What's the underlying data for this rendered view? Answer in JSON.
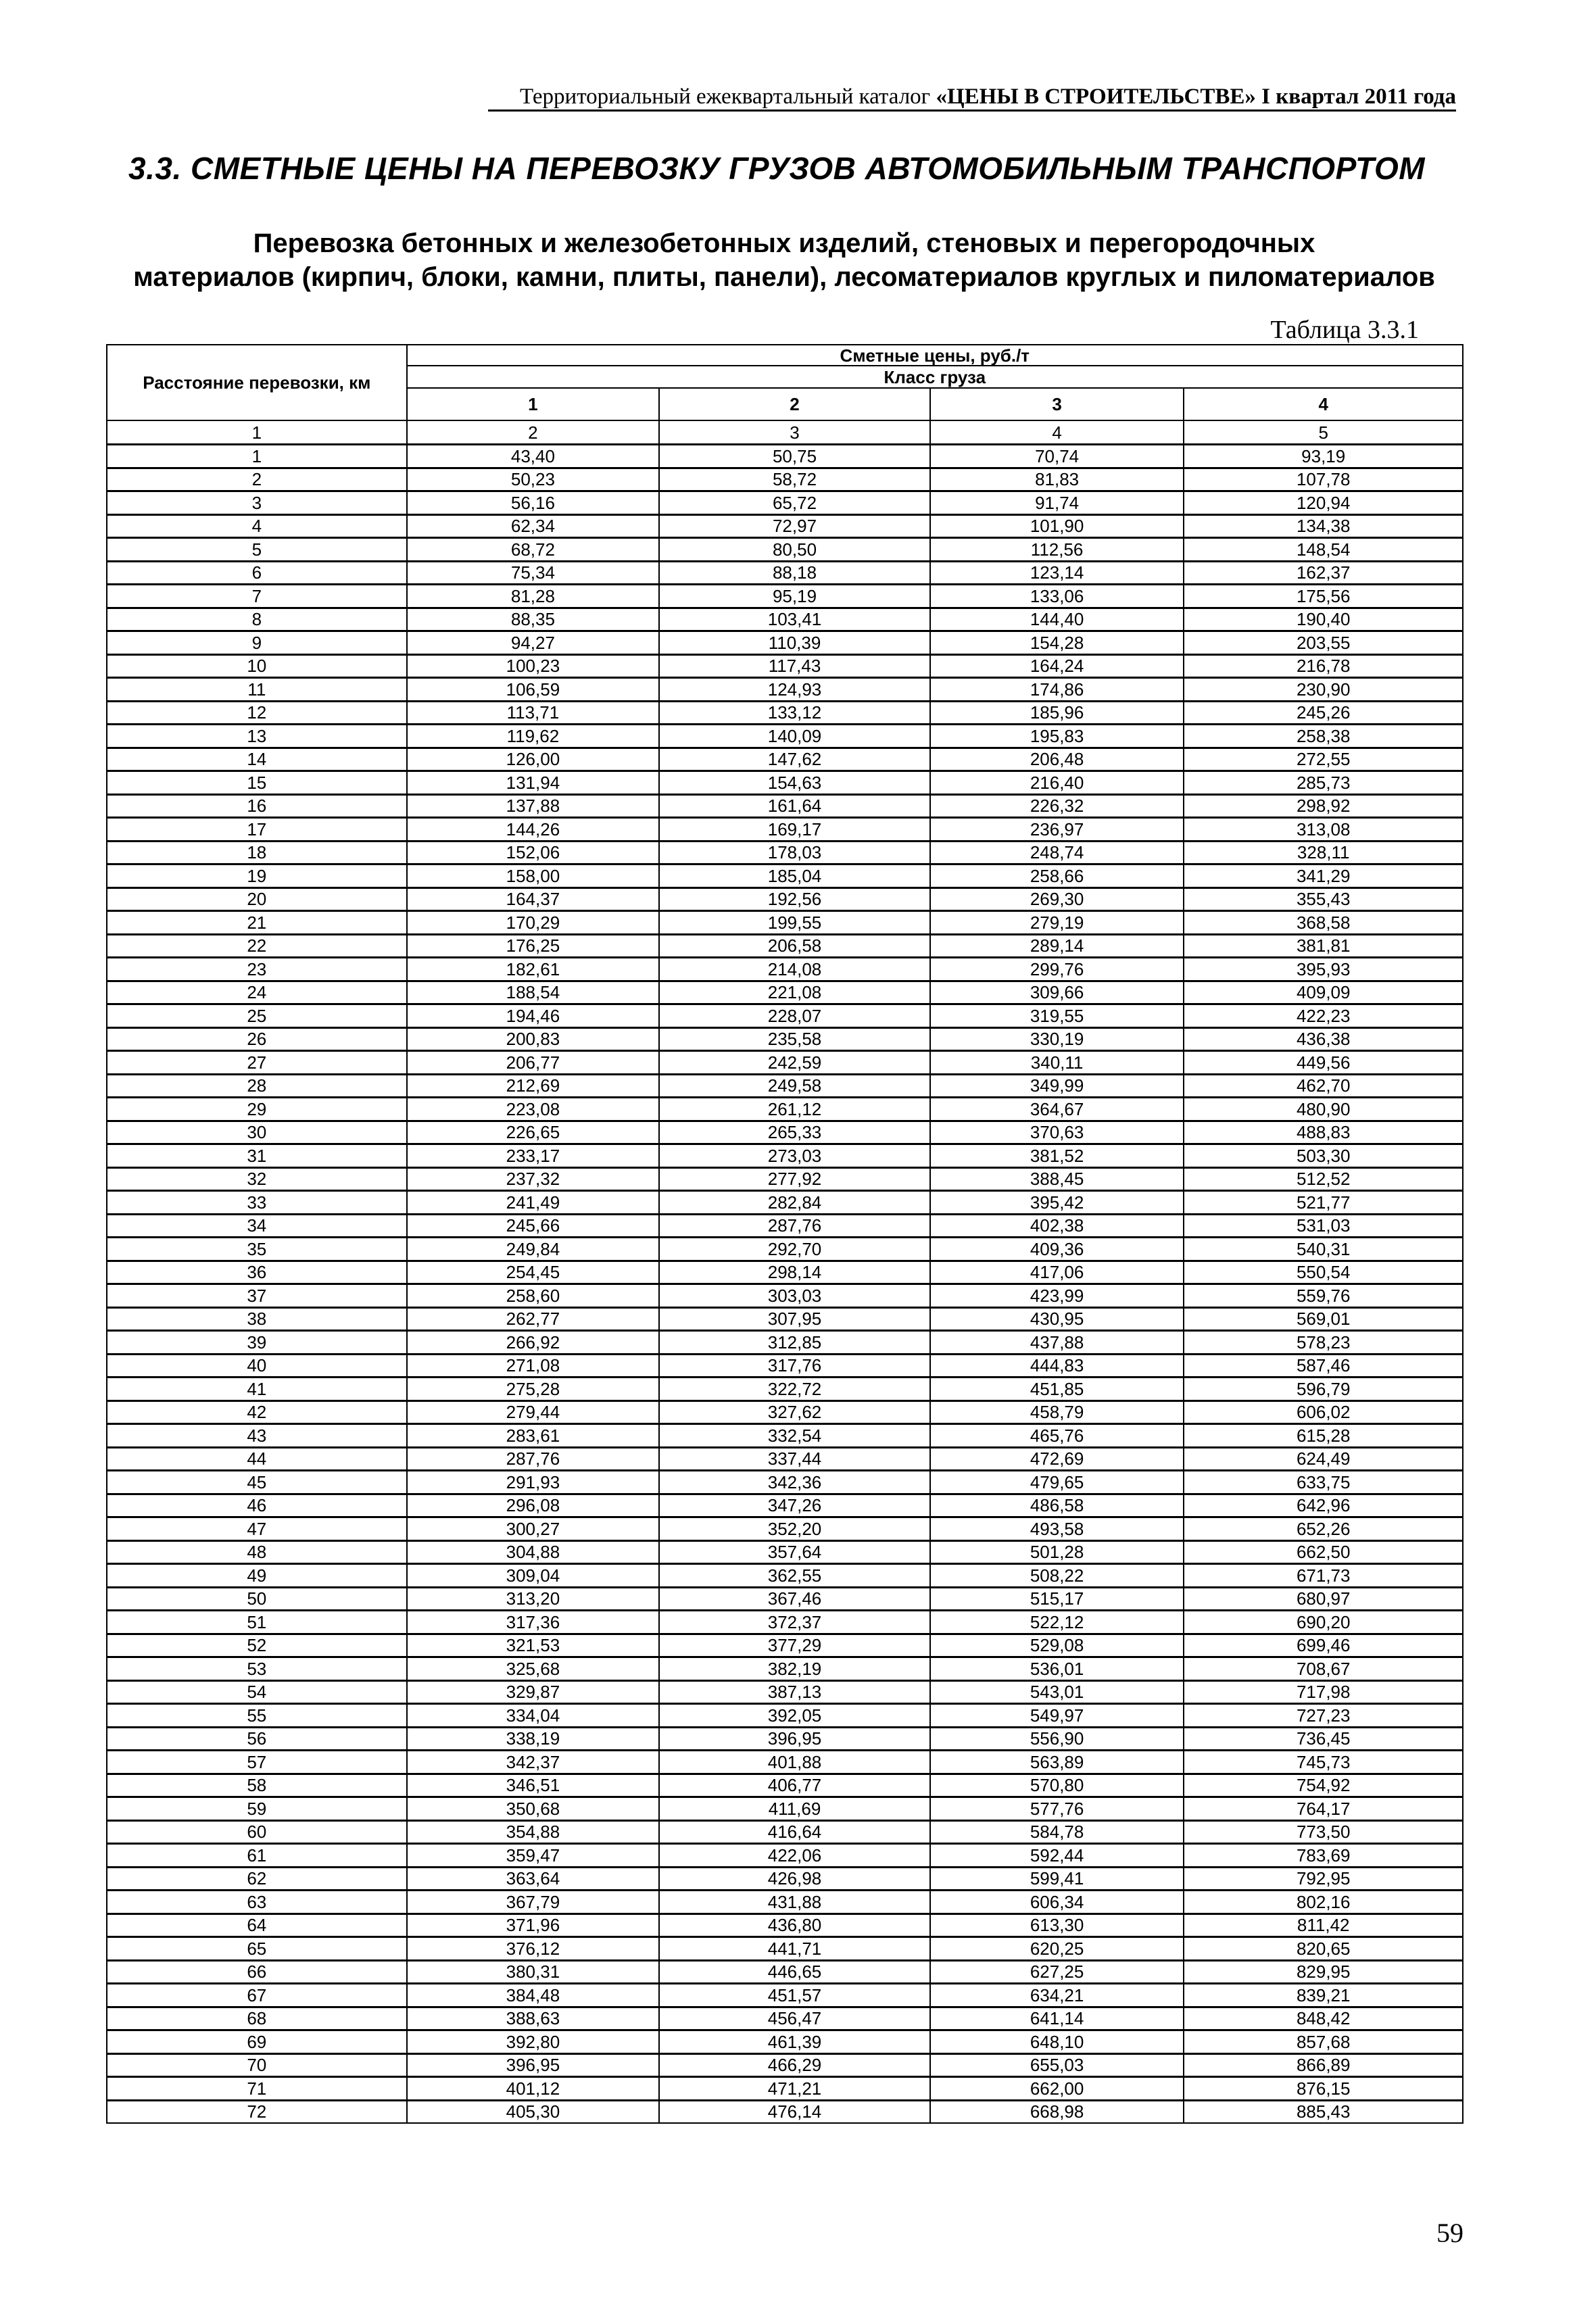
{
  "header": {
    "catalog_prefix": "Территориальный ежеквартальный каталог ",
    "catalog_bold": "«ЦЕНЫ В СТРОИТЕЛЬСТВЕ» I квартал 2011 года"
  },
  "section_title": "3.3. СМЕТНЫЕ ЦЕНЫ НА ПЕРЕВОЗКУ ГРУЗОВ АВТОМОБИЛЬНЫМ ТРАНСПОРТОМ",
  "subtitle_line1": "Перевозка бетонных и железобетонных изделий, стеновых и перегородочных",
  "subtitle_line2": "материалов (кирпич, блоки, камни, плиты, панели), лесоматериалов круглых и пиломатериалов",
  "table_label": "Таблица 3.3.1",
  "table": {
    "col_distance": "Расстояние перевозки, км",
    "col_prices": "Сметные цены, руб./т",
    "col_class": "Класс груза",
    "classes": [
      "1",
      "2",
      "3",
      "4"
    ],
    "column_numbers": [
      "1",
      "2",
      "3",
      "4",
      "5"
    ],
    "rows": [
      [
        "1",
        "43,40",
        "50,75",
        "70,74",
        "93,19"
      ],
      [
        "2",
        "50,23",
        "58,72",
        "81,83",
        "107,78"
      ],
      [
        "3",
        "56,16",
        "65,72",
        "91,74",
        "120,94"
      ],
      [
        "4",
        "62,34",
        "72,97",
        "101,90",
        "134,38"
      ],
      [
        "5",
        "68,72",
        "80,50",
        "112,56",
        "148,54"
      ],
      [
        "6",
        "75,34",
        "88,18",
        "123,14",
        "162,37"
      ],
      [
        "7",
        "81,28",
        "95,19",
        "133,06",
        "175,56"
      ],
      [
        "8",
        "88,35",
        "103,41",
        "144,40",
        "190,40"
      ],
      [
        "9",
        "94,27",
        "110,39",
        "154,28",
        "203,55"
      ],
      [
        "10",
        "100,23",
        "117,43",
        "164,24",
        "216,78"
      ],
      [
        "11",
        "106,59",
        "124,93",
        "174,86",
        "230,90"
      ],
      [
        "12",
        "113,71",
        "133,12",
        "185,96",
        "245,26"
      ],
      [
        "13",
        "119,62",
        "140,09",
        "195,83",
        "258,38"
      ],
      [
        "14",
        "126,00",
        "147,62",
        "206,48",
        "272,55"
      ],
      [
        "15",
        "131,94",
        "154,63",
        "216,40",
        "285,73"
      ],
      [
        "16",
        "137,88",
        "161,64",
        "226,32",
        "298,92"
      ],
      [
        "17",
        "144,26",
        "169,17",
        "236,97",
        "313,08"
      ],
      [
        "18",
        "152,06",
        "178,03",
        "248,74",
        "328,11"
      ],
      [
        "19",
        "158,00",
        "185,04",
        "258,66",
        "341,29"
      ],
      [
        "20",
        "164,37",
        "192,56",
        "269,30",
        "355,43"
      ],
      [
        "21",
        "170,29",
        "199,55",
        "279,19",
        "368,58"
      ],
      [
        "22",
        "176,25",
        "206,58",
        "289,14",
        "381,81"
      ],
      [
        "23",
        "182,61",
        "214,08",
        "299,76",
        "395,93"
      ],
      [
        "24",
        "188,54",
        "221,08",
        "309,66",
        "409,09"
      ],
      [
        "25",
        "194,46",
        "228,07",
        "319,55",
        "422,23"
      ],
      [
        "26",
        "200,83",
        "235,58",
        "330,19",
        "436,38"
      ],
      [
        "27",
        "206,77",
        "242,59",
        "340,11",
        "449,56"
      ],
      [
        "28",
        "212,69",
        "249,58",
        "349,99",
        "462,70"
      ],
      [
        "29",
        "223,08",
        "261,12",
        "364,67",
        "480,90"
      ],
      [
        "30",
        "226,65",
        "265,33",
        "370,63",
        "488,83"
      ],
      [
        "31",
        "233,17",
        "273,03",
        "381,52",
        "503,30"
      ],
      [
        "32",
        "237,32",
        "277,92",
        "388,45",
        "512,52"
      ],
      [
        "33",
        "241,49",
        "282,84",
        "395,42",
        "521,77"
      ],
      [
        "34",
        "245,66",
        "287,76",
        "402,38",
        "531,03"
      ],
      [
        "35",
        "249,84",
        "292,70",
        "409,36",
        "540,31"
      ],
      [
        "36",
        "254,45",
        "298,14",
        "417,06",
        "550,54"
      ],
      [
        "37",
        "258,60",
        "303,03",
        "423,99",
        "559,76"
      ],
      [
        "38",
        "262,77",
        "307,95",
        "430,95",
        "569,01"
      ],
      [
        "39",
        "266,92",
        "312,85",
        "437,88",
        "578,23"
      ],
      [
        "40",
        "271,08",
        "317,76",
        "444,83",
        "587,46"
      ],
      [
        "41",
        "275,28",
        "322,72",
        "451,85",
        "596,79"
      ],
      [
        "42",
        "279,44",
        "327,62",
        "458,79",
        "606,02"
      ],
      [
        "43",
        "283,61",
        "332,54",
        "465,76",
        "615,28"
      ],
      [
        "44",
        "287,76",
        "337,44",
        "472,69",
        "624,49"
      ],
      [
        "45",
        "291,93",
        "342,36",
        "479,65",
        "633,75"
      ],
      [
        "46",
        "296,08",
        "347,26",
        "486,58",
        "642,96"
      ],
      [
        "47",
        "300,27",
        "352,20",
        "493,58",
        "652,26"
      ],
      [
        "48",
        "304,88",
        "357,64",
        "501,28",
        "662,50"
      ],
      [
        "49",
        "309,04",
        "362,55",
        "508,22",
        "671,73"
      ],
      [
        "50",
        "313,20",
        "367,46",
        "515,17",
        "680,97"
      ],
      [
        "51",
        "317,36",
        "372,37",
        "522,12",
        "690,20"
      ],
      [
        "52",
        "321,53",
        "377,29",
        "529,08",
        "699,46"
      ],
      [
        "53",
        "325,68",
        "382,19",
        "536,01",
        "708,67"
      ],
      [
        "54",
        "329,87",
        "387,13",
        "543,01",
        "717,98"
      ],
      [
        "55",
        "334,04",
        "392,05",
        "549,97",
        "727,23"
      ],
      [
        "56",
        "338,19",
        "396,95",
        "556,90",
        "736,45"
      ],
      [
        "57",
        "342,37",
        "401,88",
        "563,89",
        "745,73"
      ],
      [
        "58",
        "346,51",
        "406,77",
        "570,80",
        "754,92"
      ],
      [
        "59",
        "350,68",
        "411,69",
        "577,76",
        "764,17"
      ],
      [
        "60",
        "354,88",
        "416,64",
        "584,78",
        "773,50"
      ],
      [
        "61",
        "359,47",
        "422,06",
        "592,44",
        "783,69"
      ],
      [
        "62",
        "363,64",
        "426,98",
        "599,41",
        "792,95"
      ],
      [
        "63",
        "367,79",
        "431,88",
        "606,34",
        "802,16"
      ],
      [
        "64",
        "371,96",
        "436,80",
        "613,30",
        "811,42"
      ],
      [
        "65",
        "376,12",
        "441,71",
        "620,25",
        "820,65"
      ],
      [
        "66",
        "380,31",
        "446,65",
        "627,25",
        "829,95"
      ],
      [
        "67",
        "384,48",
        "451,57",
        "634,21",
        "839,21"
      ],
      [
        "68",
        "388,63",
        "456,47",
        "641,14",
        "848,42"
      ],
      [
        "69",
        "392,80",
        "461,39",
        "648,10",
        "857,68"
      ],
      [
        "70",
        "396,95",
        "466,29",
        "655,03",
        "866,89"
      ],
      [
        "71",
        "401,12",
        "471,21",
        "662,00",
        "876,15"
      ],
      [
        "72",
        "405,30",
        "476,14",
        "668,98",
        "885,43"
      ]
    ]
  },
  "page_number": "59"
}
